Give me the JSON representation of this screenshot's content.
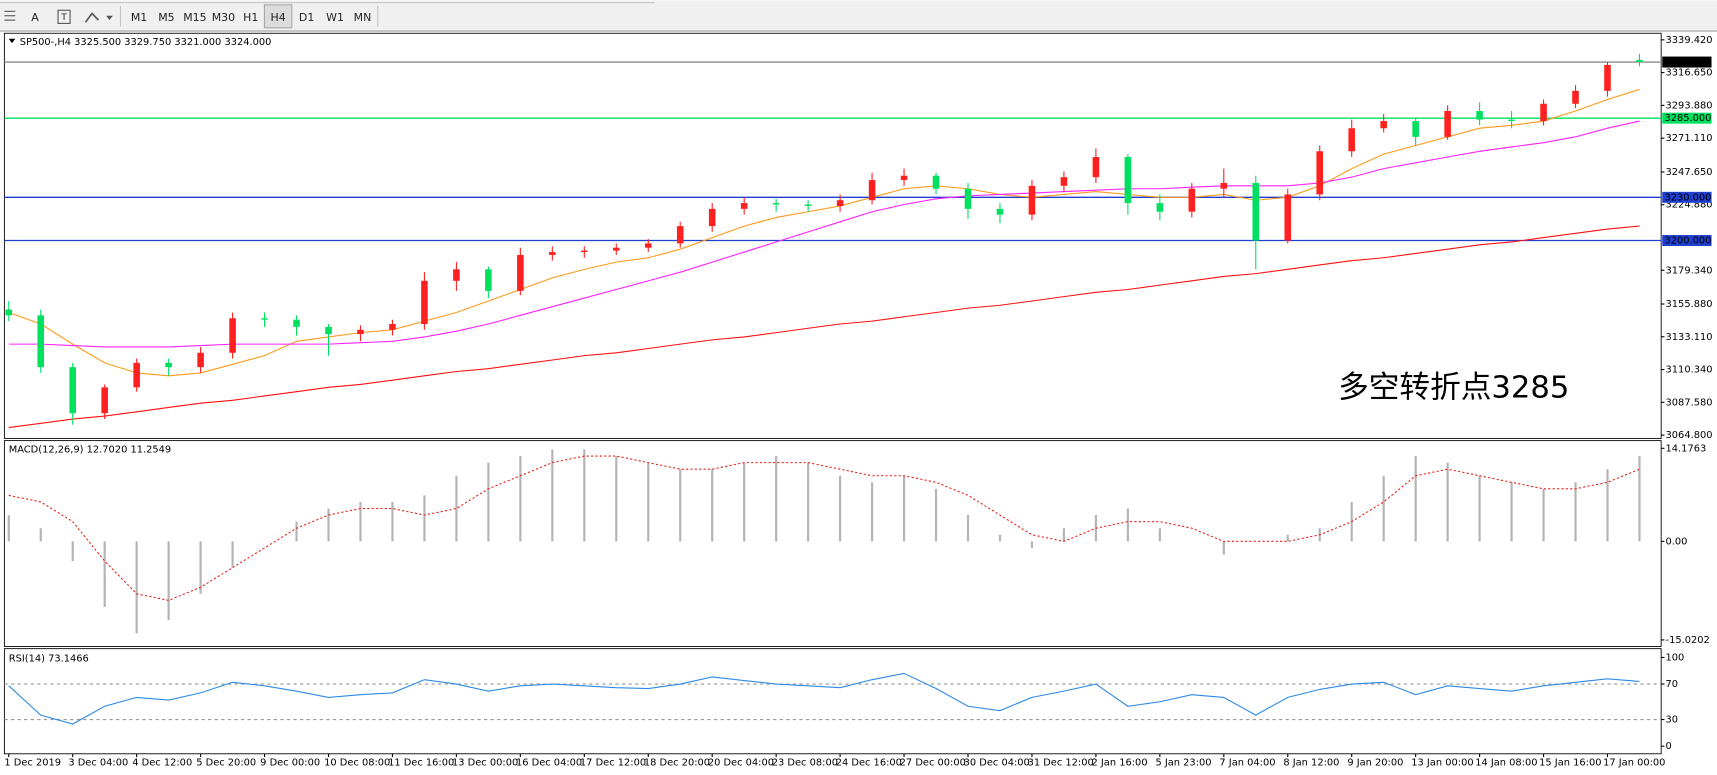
{
  "toolbar": {
    "font_button": "A",
    "timeframes": [
      "M1",
      "M5",
      "M15",
      "M30",
      "H1",
      "H4",
      "D1",
      "W1",
      "MN"
    ],
    "active": 5
  },
  "chart_data": [
    {
      "type": "candlestick",
      "title": "SP500-,H4  3325.500 3329.750 3321.000 3324.000",
      "categories": [
        "1 Dec 2019",
        null,
        "3 Dec 04:00",
        null,
        "4 Dec 12:00",
        null,
        "5 Dec 20:00",
        null,
        "9 Dec 00:00",
        null,
        "10 Dec 08:00",
        null,
        "11 Dec 16:00",
        null,
        "13 Dec 00:00",
        null,
        "16 Dec 04:00",
        null,
        "17 Dec 12:00",
        null,
        "18 Dec 20:00",
        null,
        "20 Dec 04:00",
        null,
        "23 Dec 08:00",
        null,
        "24 Dec 16:00",
        null,
        "27 Dec 00:00",
        null,
        "30 Dec 04:00",
        null,
        "31 Dec 12:00",
        null,
        "2 Jan 16:00",
        null,
        "5 Jan 23:00",
        null,
        "7 Jan 04:00",
        null,
        "8 Jan 12:00",
        null,
        "9 Jan 20:00",
        null,
        "13 Jan 00:00",
        null,
        "14 Jan 08:00",
        null,
        "15 Jan 16:00",
        null,
        "17 Jan 00:00",
        null
      ],
      "open": [
        3152,
        3148,
        3112,
        3080,
        3098,
        3115,
        3112,
        3122,
        3146,
        3145,
        3140,
        3135,
        3138,
        3142,
        3172,
        3180,
        3165,
        3190,
        3192,
        3193,
        3195,
        3198,
        3210,
        3222,
        3226,
        3225,
        3224,
        3228,
        3242,
        3245,
        3236,
        3222,
        3218,
        3238,
        3244,
        3258,
        3226,
        3220,
        3236,
        3240,
        3200,
        3232,
        3262,
        3278,
        3283,
        3272,
        3290,
        3284,
        3283,
        3295,
        3304,
        3325.5
      ],
      "high": [
        3158,
        3152,
        3115,
        3100,
        3118,
        3118,
        3126,
        3150,
        3150,
        3148,
        3142,
        3141,
        3145,
        3178,
        3185,
        3182,
        3195,
        3196,
        3196,
        3198,
        3201,
        3213,
        3226,
        3230,
        3229,
        3228,
        3232,
        3247,
        3250,
        3247,
        3240,
        3226,
        3242,
        3248,
        3264,
        3260,
        3232,
        3240,
        3250,
        3245,
        3236,
        3266,
        3284,
        3288,
        3285,
        3294,
        3296,
        3290,
        3298,
        3308,
        3324,
        3329.75
      ],
      "low": [
        3144,
        3108,
        3072,
        3076,
        3095,
        3106,
        3108,
        3118,
        3140,
        3134,
        3120,
        3130,
        3134,
        3138,
        3165,
        3160,
        3162,
        3186,
        3188,
        3190,
        3192,
        3195,
        3206,
        3218,
        3220,
        3220,
        3220,
        3225,
        3238,
        3232,
        3215,
        3212,
        3214,
        3234,
        3240,
        3218,
        3214,
        3216,
        3230,
        3180,
        3198,
        3228,
        3258,
        3275,
        3266,
        3270,
        3280,
        3278,
        3280,
        3292,
        3300,
        3321
      ],
      "close": [
        3148,
        3112,
        3080,
        3098,
        3115,
        3112,
        3122,
        3146,
        3145,
        3140,
        3135,
        3138,
        3142,
        3172,
        3180,
        3165,
        3190,
        3192,
        3193,
        3195,
        3198,
        3210,
        3222,
        3226,
        3225,
        3224,
        3228,
        3242,
        3245,
        3236,
        3222,
        3218,
        3238,
        3244,
        3258,
        3226,
        3220,
        3236,
        3240,
        3200,
        3232,
        3262,
        3278,
        3283,
        3272,
        3290,
        3284,
        3283,
        3295,
        3304,
        3322,
        3324
      ],
      "up_color": "#ff2020",
      "down_color": "#00e060",
      "series": [
        {
          "color": "#ff9a1a",
          "values": [
            3150,
            3142,
            3128,
            3115,
            3108,
            3106,
            3108,
            3114,
            3120,
            3130,
            3133,
            3136,
            3138,
            3144,
            3150,
            3158,
            3166,
            3174,
            3180,
            3185,
            3188,
            3194,
            3202,
            3210,
            3216,
            3220,
            3224,
            3230,
            3236,
            3238,
            3236,
            3232,
            3230,
            3232,
            3234,
            3232,
            3230,
            3230,
            3232,
            3228,
            3230,
            3238,
            3250,
            3260,
            3266,
            3272,
            3278,
            3280,
            3283,
            3290,
            3298,
            3305
          ]
        },
        {
          "color": "#ff20ff",
          "values": [
            3128,
            3128,
            3127,
            3126,
            3126,
            3126,
            3127,
            3128,
            3128,
            3128,
            3128,
            3129,
            3130,
            3133,
            3137,
            3142,
            3148,
            3154,
            3160,
            3166,
            3172,
            3178,
            3185,
            3192,
            3199,
            3206,
            3213,
            3220,
            3225,
            3229,
            3231,
            3232,
            3233,
            3234,
            3235,
            3236,
            3236,
            3237,
            3238,
            3238,
            3238,
            3240,
            3244,
            3250,
            3254,
            3258,
            3262,
            3265,
            3268,
            3272,
            3278,
            3283
          ]
        },
        {
          "color": "#ff1010",
          "values": [
            3070,
            3073,
            3076,
            3078,
            3081,
            3084,
            3087,
            3089,
            3092,
            3095,
            3098,
            3100,
            3103,
            3106,
            3109,
            3111,
            3114,
            3117,
            3120,
            3122,
            3125,
            3128,
            3131,
            3133,
            3136,
            3139,
            3142,
            3144,
            3147,
            3150,
            3153,
            3155,
            3158,
            3161,
            3164,
            3166,
            3169,
            3172,
            3175,
            3177,
            3180,
            3183,
            3186,
            3188,
            3191,
            3194,
            3197,
            3199,
            3202,
            3205,
            3208,
            3210
          ]
        }
      ],
      "hlines": [
        {
          "value": 3324,
          "label": "3324.000",
          "color": "#8c8c8c",
          "label_color": "#000000"
        },
        {
          "value": 3285,
          "label": "3285.000",
          "color": "#00e060",
          "label_color": "#00e060"
        },
        {
          "value": 3230,
          "label": "3230.000",
          "color": "#1f3fcf",
          "label_color": "#1f3fcf"
        },
        {
          "value": 3200,
          "label": "3200.000",
          "color": "#1f3fcf",
          "label_color": "#1f3fcf"
        }
      ],
      "annotation": "多空转折点3285",
      "annotation_color": "#e8221a",
      "ylim": [
        3062.5,
        3344
      ],
      "yticks": [
        {
          "value": 3339.42,
          "label": "3339.420"
        },
        {
          "value": 3316.65,
          "label": "3316.650"
        },
        {
          "value": 3293.88,
          "label": "3293.880"
        },
        {
          "value": 3271.11,
          "label": "3271.110"
        },
        {
          "value": 3247.65,
          "label": "3247.650"
        },
        {
          "value": 3224.88,
          "label": "3224.880"
        },
        {
          "value": 3179.34,
          "label": "3179.340"
        },
        {
          "value": 3155.88,
          "label": "3155.880"
        },
        {
          "value": 3133.11,
          "label": "3133.110"
        },
        {
          "value": 3110.34,
          "label": "3110.340"
        },
        {
          "value": 3087.58,
          "label": "3087.580"
        },
        {
          "value": 3064.8,
          "label": "3064.800"
        }
      ]
    },
    {
      "type": "macd",
      "title": "MACD(12,26,9) 12.7020 11.2549",
      "series": [
        {
          "color": "#b4b4b4",
          "style": "bars",
          "values": [
            4,
            2,
            -3,
            -10,
            -14,
            -12,
            -8,
            -4,
            0,
            3,
            5,
            6,
            6,
            7,
            10,
            12,
            13,
            14,
            14,
            13,
            12,
            11,
            11,
            12,
            13,
            12,
            10,
            9,
            10,
            8,
            4,
            1,
            -1,
            2,
            4,
            5,
            2,
            0,
            -2,
            0,
            1,
            2,
            6,
            10,
            13,
            12,
            10,
            9,
            8,
            9,
            11,
            13
          ]
        },
        {
          "color": "#e8221a",
          "style": "dotted",
          "values": [
            7,
            6,
            3,
            -3,
            -8,
            -9,
            -7,
            -4,
            -1,
            2,
            4,
            5,
            5,
            4,
            5,
            8,
            10,
            12,
            13,
            13,
            12,
            11,
            11,
            12,
            12,
            12,
            11,
            10,
            10,
            9,
            7,
            4,
            1,
            0,
            2,
            3,
            3,
            2,
            0,
            0,
            0,
            1,
            3,
            6,
            10,
            11,
            10,
            9,
            8,
            8,
            9,
            11
          ]
        }
      ],
      "ylim": [
        -16.02,
        15.35
      ],
      "yticks": [
        14.1763,
        {
          "value": 0,
          "label": "0.00"
        },
        -15.0202
      ]
    },
    {
      "type": "line",
      "title": "RSI(14) 73.1466",
      "color": "#2d8ae6",
      "values": [
        68,
        35,
        25,
        45,
        55,
        52,
        60,
        72,
        68,
        62,
        55,
        58,
        60,
        75,
        70,
        62,
        68,
        70,
        68,
        66,
        65,
        70,
        78,
        74,
        70,
        68,
        66,
        75,
        82,
        65,
        45,
        40,
        55,
        62,
        70,
        45,
        50,
        58,
        55,
        35,
        55,
        64,
        70,
        72,
        58,
        68,
        65,
        62,
        68,
        72,
        76,
        73
      ],
      "levels": [
        70,
        30
      ],
      "ylim": [
        -8.6,
        109.9
      ],
      "yticks": [
        100,
        70,
        30,
        0
      ]
    }
  ]
}
